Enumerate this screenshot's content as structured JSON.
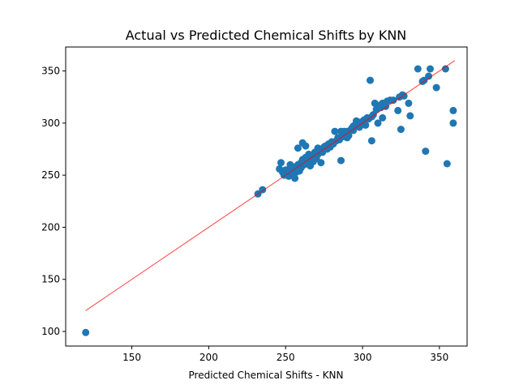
{
  "chart_data": {
    "type": "scatter",
    "title": "Actual vs Predicted Chemical Shifts by KNN",
    "xlabel": "Predicted Chemical Shifts - KNN",
    "ylabel": "",
    "xlim": [
      107,
      368
    ],
    "ylim": [
      86,
      373
    ],
    "x_ticks": [
      150,
      200,
      250,
      300,
      350
    ],
    "y_ticks": [
      100,
      150,
      200,
      250,
      300,
      350
    ],
    "grid": false,
    "point_color": "#1f77b4",
    "line_color": "#ff0000",
    "reference_line": {
      "x": [
        120,
        360
      ],
      "y": [
        120,
        360
      ]
    },
    "points": [
      [
        120,
        99
      ],
      [
        232,
        232
      ],
      [
        235,
        236
      ],
      [
        246,
        256
      ],
      [
        247,
        262
      ],
      [
        248,
        253
      ],
      [
        249,
        250
      ],
      [
        250,
        255
      ],
      [
        251,
        252
      ],
      [
        252,
        249
      ],
      [
        253,
        257
      ],
      [
        253,
        260
      ],
      [
        254,
        251
      ],
      [
        255,
        255
      ],
      [
        256,
        258
      ],
      [
        256,
        247
      ],
      [
        257,
        253
      ],
      [
        258,
        276
      ],
      [
        258,
        260
      ],
      [
        259,
        254
      ],
      [
        260,
        257
      ],
      [
        260,
        262
      ],
      [
        261,
        281
      ],
      [
        261,
        265
      ],
      [
        262,
        260
      ],
      [
        263,
        278
      ],
      [
        263,
        267
      ],
      [
        264,
        263
      ],
      [
        265,
        270
      ],
      [
        266,
        266
      ],
      [
        266,
        259
      ],
      [
        267,
        269
      ],
      [
        268,
        263
      ],
      [
        269,
        272
      ],
      [
        270,
        268
      ],
      [
        270,
        266
      ],
      [
        271,
        270
      ],
      [
        271,
        276
      ],
      [
        272,
        274
      ],
      [
        273,
        262
      ],
      [
        274,
        272
      ],
      [
        275,
        277
      ],
      [
        276,
        278
      ],
      [
        277,
        275
      ],
      [
        278,
        280
      ],
      [
        279,
        277
      ],
      [
        280,
        282
      ],
      [
        281,
        280
      ],
      [
        282,
        292
      ],
      [
        283,
        283
      ],
      [
        284,
        286
      ],
      [
        285,
        284
      ],
      [
        286,
        292
      ],
      [
        286,
        264
      ],
      [
        287,
        288
      ],
      [
        288,
        287
      ],
      [
        288,
        292
      ],
      [
        289,
        290
      ],
      [
        290,
        292
      ],
      [
        290,
        286
      ],
      [
        291,
        288
      ],
      [
        292,
        293
      ],
      [
        293,
        295
      ],
      [
        294,
        293
      ],
      [
        294,
        297
      ],
      [
        295,
        298
      ],
      [
        296,
        302
      ],
      [
        297,
        299
      ],
      [
        298,
        296
      ],
      [
        299,
        301
      ],
      [
        300,
        300
      ],
      [
        301,
        303
      ],
      [
        302,
        298
      ],
      [
        303,
        305
      ],
      [
        304,
        304
      ],
      [
        305,
        341
      ],
      [
        306,
        306
      ],
      [
        306,
        283
      ],
      [
        307,
        308
      ],
      [
        308,
        319
      ],
      [
        309,
        313
      ],
      [
        310,
        300
      ],
      [
        311,
        317
      ],
      [
        312,
        315
      ],
      [
        313,
        305
      ],
      [
        313,
        319
      ],
      [
        315,
        316
      ],
      [
        316,
        321
      ],
      [
        318,
        322
      ],
      [
        320,
        322
      ],
      [
        323,
        312
      ],
      [
        324,
        325
      ],
      [
        325,
        294
      ],
      [
        326,
        327
      ],
      [
        327,
        326
      ],
      [
        330,
        319
      ],
      [
        331,
        307
      ],
      [
        336,
        352
      ],
      [
        339,
        340
      ],
      [
        340,
        341
      ],
      [
        341,
        273
      ],
      [
        343,
        345
      ],
      [
        344,
        352
      ],
      [
        348,
        334
      ],
      [
        354,
        352
      ],
      [
        355,
        261
      ],
      [
        359,
        312
      ],
      [
        359,
        300
      ]
    ]
  }
}
